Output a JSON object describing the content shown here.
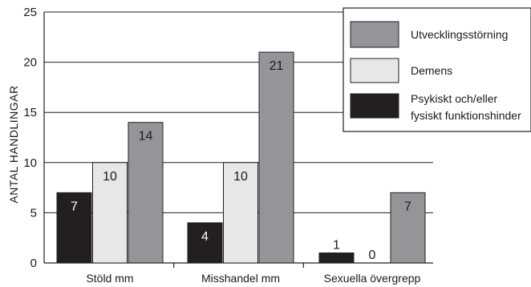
{
  "chart_data": {
    "type": "bar",
    "ylabel": "ANTAL HANDLINGAR",
    "ylim": [
      0,
      25
    ],
    "yticks": [
      0,
      5,
      10,
      15,
      20,
      25
    ],
    "grid": true,
    "legend_position": "top-right",
    "categories": [
      "Stöld mm",
      "Misshandel mm",
      "Sexuella övergrepp"
    ],
    "series": [
      {
        "name": "Psykiskt och/eller fysiskt funktionshinder",
        "values": [
          7,
          4,
          1
        ],
        "color": "#231f20",
        "label_color": "#ffffff"
      },
      {
        "name": "Demens",
        "values": [
          10,
          10,
          0
        ],
        "color": "#e6e7e8",
        "label_color": "#1a1a1a"
      },
      {
        "name": "Utvecklingsstörning",
        "values": [
          14,
          21,
          7
        ],
        "color": "#939598",
        "label_color": "#1a1a1a"
      }
    ],
    "legend_order": [
      "Utvecklingsstörning",
      "Demens",
      "Psykiskt och/eller fysiskt funktionshinder"
    ]
  }
}
